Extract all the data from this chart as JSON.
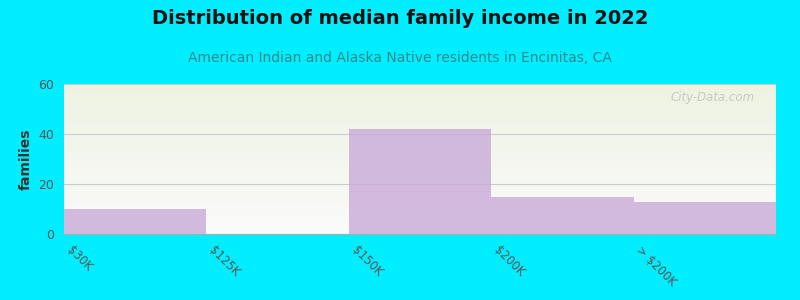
{
  "title": "Distribution of median family income in 2022",
  "subtitle": "American Indian and Alaska Native residents in Encinitas, CA",
  "categories": [
    "$30K",
    "$125K",
    "$150K",
    "$200K",
    "> $200K"
  ],
  "values": [
    10,
    0,
    42,
    15,
    13
  ],
  "bar_color": "#c9aad8",
  "bar_alpha": 0.8,
  "ylabel": "families",
  "ylim": [
    0,
    60
  ],
  "yticks": [
    0,
    20,
    40,
    60
  ],
  "background_color": "#00eeff",
  "plot_bg_top_color": "#edf2e2",
  "plot_bg_bottom_color": "#fafafa",
  "title_fontsize": 14,
  "subtitle_fontsize": 10,
  "subtitle_color": "#2a8a8a",
  "ylabel_fontsize": 10,
  "watermark_text": "City-Data.com",
  "grid_color": "#cccccc",
  "tick_label_color": "#555555",
  "bar_width": 1.0
}
